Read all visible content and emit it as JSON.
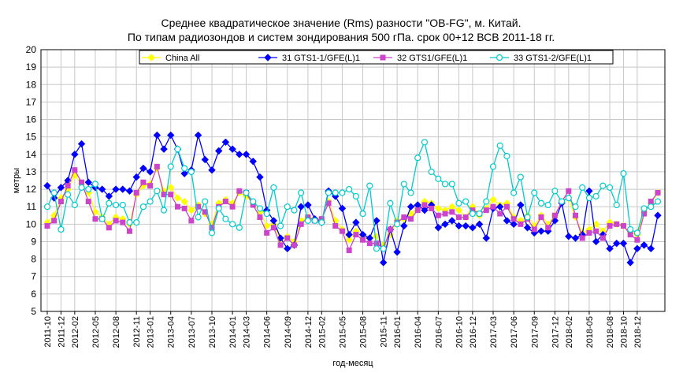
{
  "chart_data": {
    "type": "line",
    "title": "Среднее квадратическое значение (Rms) разности \"OB-FG\", м. Китай.",
    "subtitle": "По типам радиозондов и систем зондирования 500 гПа. срок 00+12 ВСВ 2011-18 гг.",
    "xlabel": "год-месяц",
    "ylabel": "метры",
    "ylim": [
      5,
      20
    ],
    "yticks": [
      5,
      6,
      7,
      8,
      9,
      10,
      11,
      12,
      13,
      14,
      15,
      16,
      17,
      18,
      19,
      20
    ],
    "grid": true,
    "legend": "top",
    "x": [
      "2011-10",
      "2011-11",
      "2011-12",
      "2012-01",
      "2012-02",
      "2012-03",
      "2012-04",
      "2012-05",
      "2012-06",
      "2012-07",
      "2012-08",
      "2012-09",
      "2012-10",
      "2012-11",
      "2012-12",
      "2013-01",
      "2013-02",
      "2013-03",
      "2013-04",
      "2013-05",
      "2013-06",
      "2013-07",
      "2013-08",
      "2013-09",
      "2013-10",
      "2013-11",
      "2013-12",
      "2014-01",
      "2014-02",
      "2014-03",
      "2014-04",
      "2014-05",
      "2014-06",
      "2014-07",
      "2014-08",
      "2014-09",
      "2014-10",
      "2014-11",
      "2014-12",
      "2015-01",
      "2015-02",
      "2015-03",
      "2015-04",
      "2015-05",
      "2015-06",
      "2015-07",
      "2015-08",
      "2015-09",
      "2015-10",
      "2015-11",
      "2015-12",
      "2016-01",
      "2016-02",
      "2016-03",
      "2016-04",
      "2016-05",
      "2016-06",
      "2016-07",
      "2016-08",
      "2016-09",
      "2016-10",
      "2016-11",
      "2016-12",
      "2017-01",
      "2017-02",
      "2017-03",
      "2017-04",
      "2017-05",
      "2017-06",
      "2017-07",
      "2017-08",
      "2017-09",
      "2017-10",
      "2017-11",
      "2017-12",
      "2018-01",
      "2018-02",
      "2018-03",
      "2018-04",
      "2018-05",
      "2018-06",
      "2018-07",
      "2018-08",
      "2018-09",
      "2018-10",
      "2018-11",
      "2018-12",
      "2019-01",
      "2019-02",
      "2019-03"
    ],
    "xtick_labels": [
      "2011-10",
      "2011-12",
      "2012-02",
      "2012-05",
      "2012-08",
      "2012-11",
      "2013-01",
      "2013-04",
      "2013-07",
      "2013-10",
      "2014-01",
      "2014-03",
      "2014-06",
      "2014-09",
      "2014-12",
      "2015-02",
      "2015-05",
      "2015-08",
      "2015-11",
      "2016-01",
      "2016-04",
      "2016-07",
      "2016-10",
      "2016-12",
      "2017-03",
      "2017-06",
      "2017-09",
      "2017-12",
      "2018-02",
      "2018-05",
      "2018-08",
      "2018-10",
      "2018-12"
    ],
    "series": [
      {
        "name": "China All",
        "color": "#ffff00",
        "marker": "diamond",
        "values": [
          10.1,
          10.5,
          11.5,
          12.0,
          12.8,
          12.3,
          11.8,
          10.7,
          10.4,
          10.0,
          10.4,
          10.3,
          10.0,
          11.7,
          12.2,
          12.3,
          13.2,
          11.9,
          12.1,
          11.5,
          11.3,
          10.8,
          11.1,
          10.6,
          10.0,
          11.2,
          11.4,
          11.2,
          11.8,
          11.6,
          11.2,
          10.7,
          9.9,
          10.0,
          9.1,
          9.3,
          9.0,
          10.2,
          10.4,
          10.3,
          10.2,
          11.3,
          10.2,
          9.7,
          9.1,
          9.6,
          9.2,
          9.2,
          9.3,
          8.8,
          9.4,
          10.2,
          10.3,
          10.6,
          10.9,
          11.3,
          11.2,
          10.9,
          10.8,
          11.0,
          10.8,
          10.4,
          11.0,
          10.5,
          10.9,
          11.4,
          11.1,
          11.2,
          10.4,
          10.2,
          10.5,
          9.9,
          10.5,
          10.0,
          10.5,
          11.3,
          11.5,
          10.4,
          9.5,
          9.7,
          10.0,
          9.6,
          10.1,
          10.0,
          9.9,
          9.5,
          9.4,
          10.7,
          11.2,
          11.8
        ]
      },
      {
        "name": "31 GTS1-1/GFE(L)1",
        "color": "#0000ff",
        "marker": "diamond",
        "values": [
          12.2,
          11.5,
          12.1,
          12.5,
          14.0,
          14.6,
          12.4,
          12.1,
          12.0,
          11.6,
          12.0,
          12.0,
          11.9,
          12.7,
          13.2,
          13.0,
          15.1,
          14.3,
          15.1,
          14.3,
          12.9,
          13.1,
          15.1,
          13.7,
          13.1,
          14.2,
          14.7,
          14.3,
          14.0,
          14.0,
          13.6,
          12.7,
          10.8,
          10.2,
          9.2,
          8.6,
          8.8,
          11.0,
          11.1,
          10.3,
          10.1,
          11.9,
          11.6,
          10.9,
          9.4,
          10.1,
          9.4,
          9.2,
          10.2,
          7.8,
          9.7,
          8.4,
          9.9,
          11.0,
          11.1,
          10.8,
          11.1,
          9.8,
          10.0,
          10.2,
          9.9,
          9.9,
          9.8,
          10.0,
          9.2,
          10.9,
          11.0,
          10.2,
          10.0,
          11.1,
          9.8,
          9.5,
          9.6,
          9.6,
          10.2,
          11.2,
          9.3,
          9.2,
          9.4,
          11.9,
          9.0,
          9.4,
          8.6,
          8.9,
          8.9,
          7.8,
          8.6,
          8.8,
          8.6,
          10.5
        ]
      },
      {
        "name": "32 GTS1/GFE(L)1",
        "color": "#cc44cc",
        "marker": "square",
        "values": [
          9.9,
          10.2,
          11.3,
          12.2,
          13.1,
          12.4,
          11.3,
          10.3,
          10.3,
          9.8,
          10.2,
          10.1,
          9.6,
          11.8,
          12.4,
          12.2,
          13.3,
          11.7,
          11.7,
          11.0,
          10.9,
          10.2,
          11.0,
          10.7,
          9.8,
          11.0,
          11.3,
          11.0,
          11.9,
          11.8,
          11.1,
          10.4,
          9.5,
          9.8,
          8.8,
          9.2,
          8.8,
          10.0,
          10.4,
          10.2,
          10.3,
          11.2,
          9.9,
          9.6,
          8.5,
          9.4,
          9.1,
          8.9,
          8.9,
          8.6,
          9.7,
          10.1,
          10.4,
          10.3,
          10.8,
          11.1,
          10.9,
          10.5,
          10.6,
          10.7,
          10.4,
          10.4,
          10.8,
          10.6,
          10.8,
          11.0,
          10.6,
          11.0,
          10.3,
          10.0,
          10.3,
          9.7,
          10.4,
          9.8,
          10.5,
          11.3,
          11.9,
          10.5,
          9.2,
          9.5,
          9.6,
          9.2,
          9.9,
          10.0,
          9.9,
          9.4,
          9.1,
          10.6,
          11.3,
          11.8
        ]
      },
      {
        "name": "33 GTS1-2/GFE(L)1",
        "color": "#00cccc",
        "marker": "circle",
        "values": [
          11.0,
          11.8,
          9.7,
          11.7,
          11.1,
          12.1,
          12.0,
          12.3,
          10.3,
          11.2,
          11.1,
          11.1,
          10.1,
          10.1,
          11.0,
          11.3,
          11.9,
          10.8,
          13.3,
          14.3,
          13.2,
          13.0,
          10.4,
          11.3,
          9.5,
          10.9,
          10.3,
          10.0,
          9.8,
          11.8,
          11.3,
          10.9,
          10.6,
          12.1,
          9.9,
          11.0,
          10.8,
          11.8,
          10.2,
          10.2,
          10.1,
          11.8,
          11.8,
          11.8,
          12.0,
          11.6,
          10.6,
          12.2,
          8.6,
          8.6,
          11.2,
          10.0,
          12.3,
          11.8,
          13.8,
          14.7,
          13.0,
          12.6,
          12.3,
          12.3,
          11.2,
          11.3,
          10.6,
          10.6,
          11.3,
          13.3,
          14.5,
          13.9,
          11.8,
          12.7,
          10.4,
          11.8,
          11.2,
          11.1,
          11.9,
          11.3,
          11.5,
          11.0,
          12.1,
          11.5,
          11.6,
          12.2,
          12.1,
          11.1,
          12.9,
          9.7,
          9.5,
          10.9,
          11.0,
          11.3
        ]
      }
    ]
  }
}
